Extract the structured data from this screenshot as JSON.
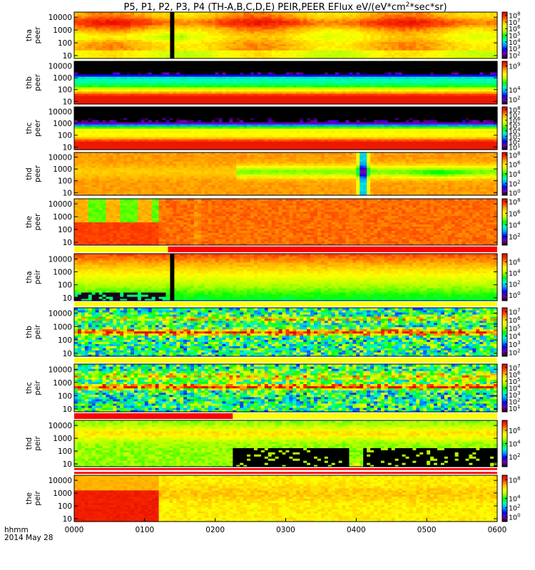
{
  "chart_data": {
    "type": "heatmap",
    "title": "P5, P1, P2, P3, P4 (TH-A,B,C,D,E) PEIR,PEER EFlux eV/(eV*cm²*sec*sr)",
    "title_parts": [
      "P5, P1, P2, P3, P4 (TH-A,B,C,D,E) PEIR,PEER EFlux eV/(eV*cm",
      "2",
      "*sec*sr)"
    ],
    "x_axis": {
      "label_line1": "hhmm",
      "label_line2": "2014 May 28",
      "ticks": [
        "0000",
        "0100",
        "0200",
        "0300",
        "0400",
        "0500",
        "0600"
      ],
      "range_hours": [
        0,
        6
      ]
    },
    "y_axis": {
      "scale": "log",
      "unit": "eV",
      "ticks": [
        "10",
        "100",
        "1000",
        "10000"
      ],
      "range": [
        6,
        25000
      ]
    },
    "colorbar": {
      "scale": "log",
      "colormap": [
        "#000000",
        "#7a00a8",
        "#0000ff",
        "#00a0ff",
        "#00ffd0",
        "#00ff00",
        "#b4ff00",
        "#ffff00",
        "#ffb400",
        "#ff3c00",
        "#e00000"
      ]
    },
    "panels": [
      {
        "probe": "tha",
        "species": "peer",
        "label_top": "tha",
        "label_bottom": "peer",
        "cb_ticks": [
          {
            "base": "10",
            "exp": "8"
          },
          {
            "base": "10",
            "exp": "7"
          },
          {
            "base": "10",
            "exp": "6"
          },
          {
            "base": "10",
            "exp": "5"
          },
          {
            "base": "10",
            "exp": "4"
          },
          {
            "base": "10",
            "exp": "3"
          },
          {
            "base": "10",
            "exp": "2"
          }
        ],
        "cb_exp_range": [
          1.5,
          8.5
        ],
        "gap_hours": [
          1.36,
          1.42
        ],
        "mode": "p1"
      },
      {
        "probe": "thb",
        "species": "peer",
        "label_top": "thb",
        "label_bottom": "peer",
        "cb_ticks": [
          {
            "base": "10",
            "exp": "9"
          },
          {
            "base": "10",
            "exp": "4"
          },
          {
            "base": "10",
            "exp": "2"
          }
        ],
        "cb_exp_range": [
          1,
          10
        ],
        "mode": "p2"
      },
      {
        "probe": "thc",
        "species": "peer",
        "label_top": "thc",
        "label_bottom": "peer",
        "cb_ticks": [
          {
            "base": "10",
            "exp": "8"
          },
          {
            "base": "10",
            "exp": "7"
          },
          {
            "base": "10",
            "exp": "6"
          },
          {
            "base": "10",
            "exp": "5"
          },
          {
            "base": "10",
            "exp": "4"
          },
          {
            "base": "10",
            "exp": "3"
          },
          {
            "base": "10",
            "exp": "2"
          },
          {
            "base": "10",
            "exp": "1"
          }
        ],
        "cb_exp_range": [
          0.5,
          8.5
        ],
        "mode": "p3"
      },
      {
        "probe": "thd",
        "species": "peer",
        "label_top": "thd",
        "label_bottom": "peer",
        "cb_ticks": [
          {
            "base": "10",
            "exp": "8"
          },
          {
            "base": "10",
            "exp": "6"
          },
          {
            "base": "10",
            "exp": "4"
          },
          {
            "base": "10",
            "exp": "2"
          },
          {
            "base": "10",
            "exp": "0"
          }
        ],
        "cb_exp_range": [
          -0.5,
          8.5
        ],
        "mode": "p4"
      },
      {
        "probe": "the",
        "species": "peer",
        "label_top": "the",
        "label_bottom": "peer",
        "cb_ticks": [
          {
            "base": "10",
            "exp": "8"
          },
          {
            "base": "10",
            "exp": "6"
          },
          {
            "base": "10",
            "exp": "4"
          },
          {
            "base": "10",
            "exp": "2"
          }
        ],
        "cb_exp_range": [
          0.5,
          8.5
        ],
        "mode": "p5"
      },
      {
        "probe": "tha",
        "species": "peir",
        "label_top": "tha",
        "label_bottom": "peir",
        "cb_ticks": [
          {
            "base": "10",
            "exp": "6"
          },
          {
            "base": "10",
            "exp": "4"
          },
          {
            "base": "10",
            "exp": "2"
          },
          {
            "base": "10",
            "exp": "0"
          }
        ],
        "cb_exp_range": [
          -1,
          7.5
        ],
        "gap_hours": [
          1.36,
          1.42
        ],
        "mode": "p6"
      },
      {
        "probe": "thb",
        "species": "peir",
        "label_top": "thb",
        "label_bottom": "peir",
        "cb_ticks": [
          {
            "base": "10",
            "exp": "7"
          },
          {
            "base": "10",
            "exp": "6"
          },
          {
            "base": "10",
            "exp": "5"
          },
          {
            "base": "10",
            "exp": "4"
          },
          {
            "base": "10",
            "exp": "3"
          },
          {
            "base": "10",
            "exp": "2"
          }
        ],
        "cb_exp_range": [
          1.5,
          7.5
        ],
        "mode": "p7"
      },
      {
        "probe": "thc",
        "species": "peir",
        "label_top": "thc",
        "label_bottom": "peir",
        "cb_ticks": [
          {
            "base": "10",
            "exp": "7"
          },
          {
            "base": "10",
            "exp": "6"
          },
          {
            "base": "10",
            "exp": "5"
          },
          {
            "base": "10",
            "exp": "4"
          },
          {
            "base": "10",
            "exp": "3"
          },
          {
            "base": "10",
            "exp": "2"
          },
          {
            "base": "10",
            "exp": "1"
          }
        ],
        "cb_exp_range": [
          0.5,
          7.5
        ],
        "mode": "p8"
      },
      {
        "probe": "thd",
        "species": "peir",
        "label_top": "thd",
        "label_bottom": "peir",
        "cb_ticks": [
          {
            "base": "10",
            "exp": "6"
          },
          {
            "base": "10",
            "exp": "4"
          },
          {
            "base": "10",
            "exp": "2"
          }
        ],
        "cb_exp_range": [
          0.5,
          7.5
        ],
        "mode": "p9"
      },
      {
        "probe": "the",
        "species": "peir",
        "label_top": "the",
        "label_bottom": "peir",
        "cb_ticks": [
          {
            "base": "10",
            "exp": "8"
          },
          {
            "base": "10",
            "exp": "4"
          },
          {
            "base": "10",
            "exp": "2"
          },
          {
            "base": "10",
            "exp": "0"
          }
        ],
        "cb_exp_range": [
          -1,
          9
        ],
        "mode": "p10"
      }
    ],
    "status_bars": [
      {
        "after_panel": 5,
        "yellow_until_hours": 1.33,
        "color_rest": "red"
      },
      {
        "after_panel": 6,
        "color": "yellow"
      },
      {
        "after_panel": 7,
        "color": "yellow"
      },
      {
        "after_panel": 8,
        "red_until_hours": 2.25,
        "color_rest": "yellow"
      },
      {
        "after_panel": 9,
        "color": "red_white_red"
      }
    ]
  }
}
